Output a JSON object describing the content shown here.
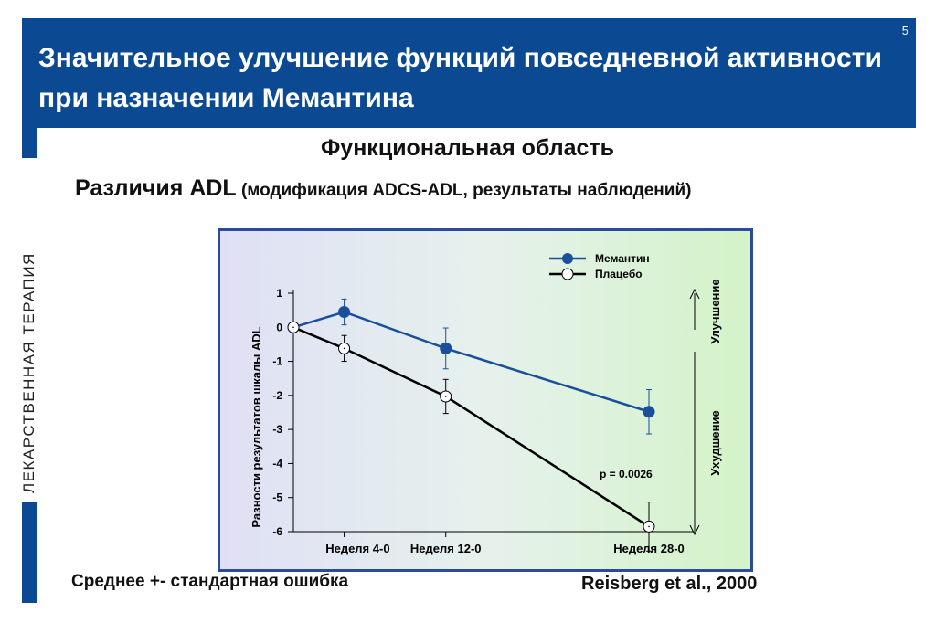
{
  "slide": {
    "title": "Значительное улучшение функций повседневной активности при назначении Мемантина",
    "number": "5",
    "side_label": "ЛЕКАРСТВЕННАЯ ТЕРАПИЯ",
    "subtitle": "Функциональная область",
    "heading_main": "Различия ADL",
    "heading_note": " (модификация ADCS-ADL, результаты наблюдений)",
    "footnote_left": "Среднее +- стандартная ошибка",
    "footnote_right": "Reisberg et al., 2000"
  },
  "chart_data": {
    "type": "line",
    "title": "",
    "xlabel": "",
    "ylabel": "Разности результатов шкалы ADL",
    "ylim": [
      -6,
      1
    ],
    "y_ticks": [
      "1",
      "0",
      "-1",
      "-2",
      "-3",
      "-4",
      "-5",
      "-6"
    ],
    "x_weeks": [
      0,
      4,
      12,
      28
    ],
    "x_tick_labels": [
      {
        "week": 4,
        "label": "Неделя 4-0"
      },
      {
        "week": 12,
        "label": "Неделя 12-0"
      },
      {
        "week": 28,
        "label": "Неделя 28-0"
      }
    ],
    "series": [
      {
        "name": "Мемантин",
        "color": "#1a4f9c",
        "marker": "filled-circle",
        "values": [
          0,
          0.45,
          -0.62,
          -2.48
        ],
        "errors": [
          0,
          0.38,
          0.6,
          0.65
        ]
      },
      {
        "name": "Плацебо",
        "color": "#000000",
        "marker": "open-circle",
        "values": [
          0,
          -0.62,
          -2.03,
          -5.85
        ],
        "errors": [
          0,
          0.38,
          0.5,
          0.72
        ]
      }
    ],
    "annotation": "p = 0.0026",
    "direction_labels": {
      "up": "Улучшение",
      "down": "Ухудшение"
    },
    "legend_position": "top-right",
    "grid": false
  }
}
